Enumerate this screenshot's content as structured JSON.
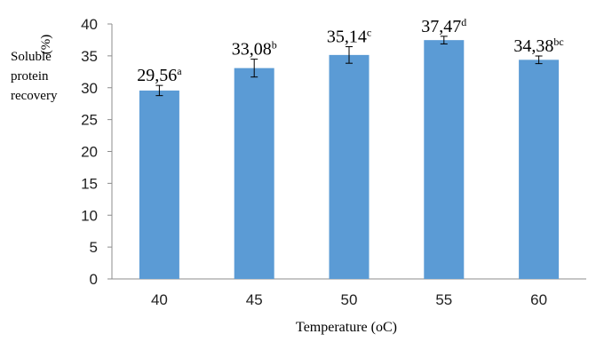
{
  "chart_data": {
    "type": "bar",
    "categories": [
      "40",
      "45",
      "50",
      "55",
      "60"
    ],
    "values": [
      29.56,
      33.08,
      35.14,
      37.47,
      34.38
    ],
    "errors": [
      0.8,
      1.4,
      1.3,
      0.6,
      0.6
    ],
    "data_labels": [
      "29,56",
      "33,08",
      "35,14",
      "37,47",
      "34,38"
    ],
    "significance_letters": [
      "a",
      "b",
      "c",
      "d",
      "bc"
    ],
    "yticks": [
      0,
      5,
      10,
      15,
      20,
      25,
      30,
      35,
      40
    ],
    "ylim": [
      0,
      40
    ],
    "ylabel_lines": [
      "Soluble",
      "protein",
      "recovery"
    ],
    "ylabel_unit": "(%)",
    "xlabel": "Temperature (oC)",
    "grid": false,
    "colors": {
      "bar": "#5b9bd5",
      "axis": "#8c8c8c",
      "error_bar": "#000000",
      "text": "#000000"
    }
  }
}
